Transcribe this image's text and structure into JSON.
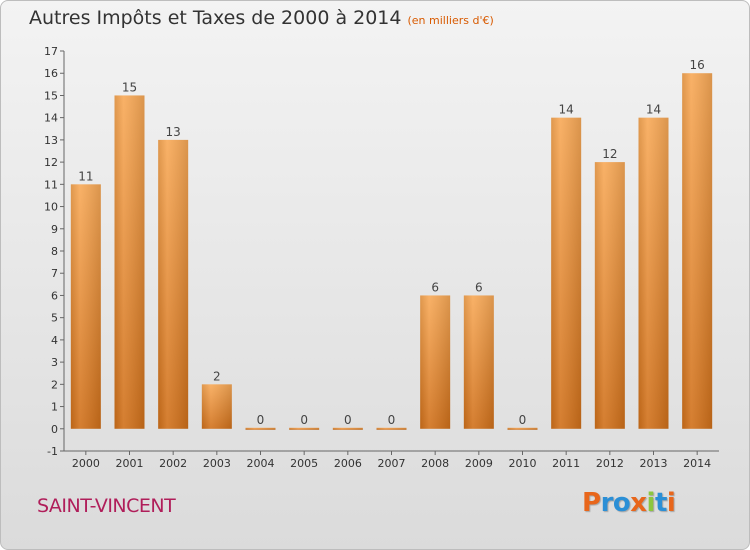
{
  "header": {
    "title": "Autres Impôts et Taxes de 2000 à 2014",
    "unit": "(en milliers d'€)"
  },
  "footer": {
    "commune": "SAINT-VINCENT",
    "logo": [
      "P",
      "r",
      "o",
      "x",
      "i",
      "t",
      "i"
    ],
    "logo_colors": [
      "#e8661b",
      "#2b8fd6",
      "#2b8fd6",
      "#e8661b",
      "#8cc63f",
      "#2b8fd6",
      "#e8661b"
    ]
  },
  "chart_data": {
    "type": "bar",
    "categories": [
      "2000",
      "2001",
      "2002",
      "2003",
      "2004",
      "2005",
      "2006",
      "2007",
      "2008",
      "2009",
      "2010",
      "2011",
      "2012",
      "2013",
      "2014"
    ],
    "values": [
      11,
      15,
      13,
      2,
      0,
      0,
      0,
      0,
      6,
      6,
      0,
      14,
      12,
      14,
      16
    ],
    "data_labels": [
      "11",
      "15",
      "13",
      "2",
      "0",
      "0",
      "0",
      "0",
      "6",
      "6",
      "0",
      "14",
      "12",
      "14",
      "16"
    ],
    "ylim": [
      -1,
      17
    ],
    "yticks": [
      "-1",
      "0",
      "1",
      "2",
      "3",
      "4",
      "5",
      "6",
      "7",
      "8",
      "9",
      "10",
      "11",
      "12",
      "13",
      "14",
      "15",
      "16",
      "17"
    ],
    "grid": false,
    "bar_color": "#f08a2a",
    "bar_color_light": "#f8a957",
    "bar_color_dark": "#d0701a"
  }
}
